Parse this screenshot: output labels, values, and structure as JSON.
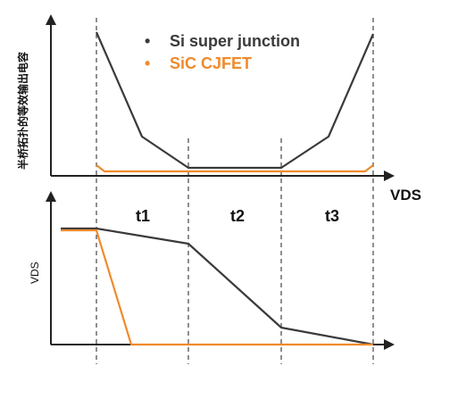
{
  "colors": {
    "si": "#3a3a3a",
    "sic": "#f08a2c",
    "axis": "#222222",
    "divider": "#444444"
  },
  "top_plot": {
    "ylabel": "半桥拓扑的等效输出电容",
    "xlabel": "VDS",
    "legend": [
      {
        "marker": "•",
        "name": "Si super junction"
      },
      {
        "marker": "•",
        "name": "SiC CJFET"
      }
    ]
  },
  "bottom_plot": {
    "ylabel": "VDS"
  },
  "intervals": [
    "t1",
    "t2",
    "t3"
  ]
}
